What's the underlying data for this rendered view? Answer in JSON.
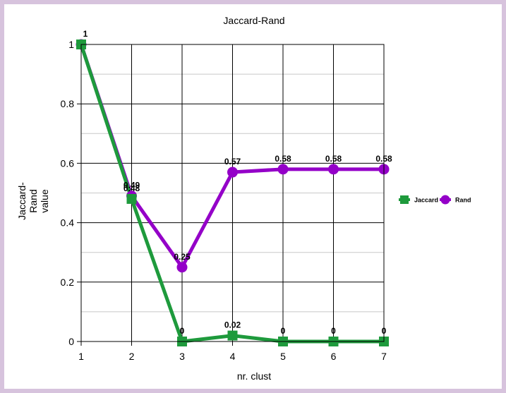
{
  "chart_data": {
    "type": "line",
    "title": "Jaccard-Rand",
    "xlabel": "nr. clust",
    "ylabel_lines": [
      "Jaccard-",
      "Rand",
      "value"
    ],
    "x": [
      1,
      2,
      3,
      4,
      5,
      6,
      7
    ],
    "xlim": [
      1,
      7
    ],
    "ylim": [
      0,
      1
    ],
    "yticks": [
      "0",
      "0.2",
      "0.4",
      "0.6",
      "0.8",
      "1"
    ],
    "ytick_values": [
      0,
      0.2,
      0.4,
      0.6,
      0.8,
      1
    ],
    "grid": true,
    "legend_position": "right",
    "series": [
      {
        "name": "Jaccard",
        "values": [
          1,
          0.48,
          0,
          0.02,
          0,
          0,
          0
        ],
        "labels": [
          "1",
          "0.48",
          "0",
          "0.02",
          "0",
          "0",
          "0"
        ],
        "color": "#1e9a3c",
        "marker": "square"
      },
      {
        "name": "Rand",
        "values": [
          1,
          0.49,
          0.25,
          0.57,
          0.58,
          0.58,
          0.58
        ],
        "labels": [
          "1",
          "0.49",
          "0.25",
          "0.57",
          "0.58",
          "0.58",
          "0.58"
        ],
        "color": "#9400c8",
        "marker": "circle"
      }
    ]
  }
}
